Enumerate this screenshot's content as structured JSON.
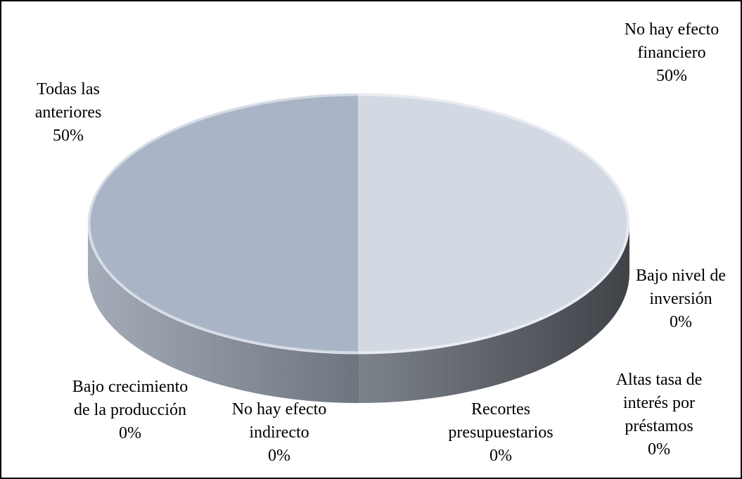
{
  "chart_data": {
    "type": "pie",
    "categories": [
      "No hay efecto financiero",
      "Bajo nivel de inversión",
      "Altas tasa de interés por préstamos",
      "Recortes presupuestarios",
      "No hay efecto indirecto",
      "Bajo crecimiento de la producción",
      "Todas las anteriores"
    ],
    "values": [
      50,
      0,
      0,
      0,
      0,
      0,
      50
    ],
    "value_labels": [
      "50%",
      "0%",
      "0%",
      "0%",
      "0%",
      "0%",
      "50%"
    ],
    "colors": [
      "#d3d9e2",
      "#c4ccd8",
      "#bcc5d2",
      "#b5bfcd",
      "#b0bac9",
      "#adb7c7",
      "#a9b5c6"
    ]
  }
}
